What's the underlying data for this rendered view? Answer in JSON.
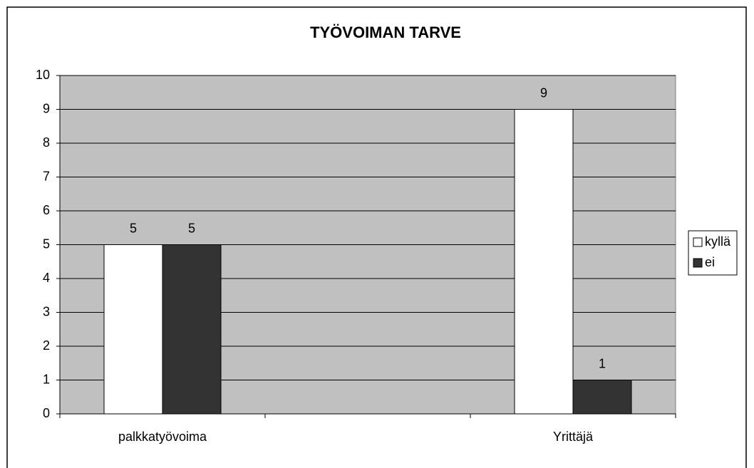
{
  "chart_data": {
    "type": "bar",
    "title": "TYÖVOIMAN TARVE",
    "categories": [
      "palkkatyövoima",
      null,
      "Yrittäjä"
    ],
    "series": [
      {
        "name": "kyllä",
        "color": "#ffffff",
        "values": [
          5,
          null,
          9
        ]
      },
      {
        "name": "ei",
        "color": "#333333",
        "values": [
          5,
          null,
          1
        ]
      }
    ],
    "ylim": [
      0,
      10
    ],
    "yticks": [
      0,
      1,
      2,
      3,
      4,
      5,
      6,
      7,
      8,
      9,
      10
    ],
    "grid": true,
    "legend": "right"
  }
}
